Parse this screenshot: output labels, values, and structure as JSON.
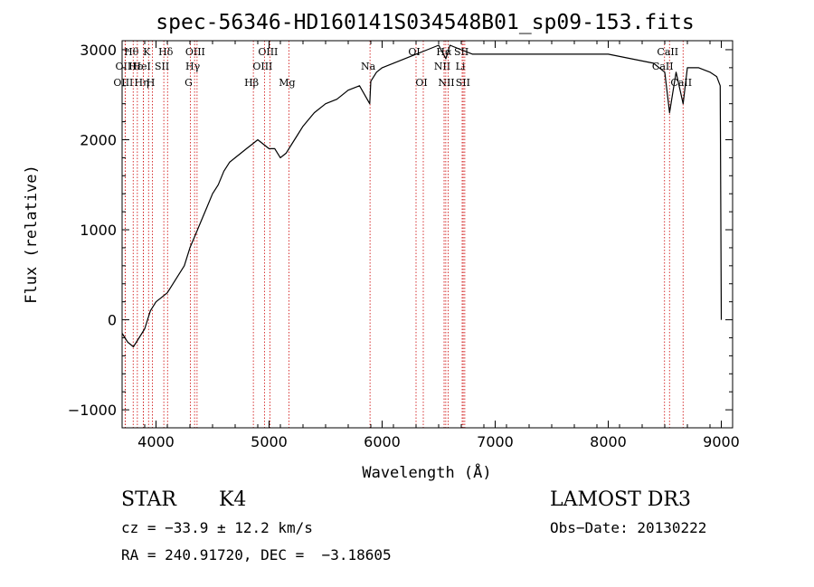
{
  "chart_data": {
    "type": "line",
    "title": "spec-56346-HD160141S034548B01_sp09-153.fits",
    "xlabel": "Wavelength (Å)",
    "ylabel": "Flux (relative)",
    "xlim": [
      3700,
      9100
    ],
    "ylim": [
      -1200,
      3100
    ],
    "xticks": [
      4000,
      5000,
      6000,
      7000,
      8000,
      9000
    ],
    "yticks": [
      -1000,
      0,
      1000,
      2000,
      3000
    ],
    "xtick_labels": [
      "4000",
      "5000",
      "6000",
      "7000",
      "8000",
      "9000"
    ],
    "ytick_labels": [
      "−1000",
      "0",
      "1000",
      "2000",
      "3000"
    ],
    "grid": false,
    "series": [
      {
        "color": "#000000",
        "x": [
          3700,
          3750,
          3800,
          3850,
          3900,
          3950,
          4000,
          4050,
          4100,
          4150,
          4200,
          4250,
          4300,
          4350,
          4400,
          4450,
          4500,
          4550,
          4600,
          4650,
          4700,
          4750,
          4800,
          4850,
          4900,
          4950,
          5000,
          5050,
          5100,
          5150,
          5200,
          5250,
          5300,
          5400,
          5500,
          5600,
          5700,
          5800,
          5890,
          5900,
          5950,
          6000,
          6100,
          6200,
          6300,
          6400,
          6500,
          6563,
          6600,
          6700,
          6800,
          6900,
          7000,
          7200,
          7400,
          7600,
          7800,
          8000,
          8200,
          8400,
          8500,
          8542,
          8600,
          8662,
          8700,
          8800,
          8900,
          8960,
          8990,
          9000
        ],
        "y": [
          -150,
          -250,
          -300,
          -200,
          -100,
          100,
          200,
          250,
          300,
          400,
          500,
          600,
          800,
          950,
          1100,
          1250,
          1400,
          1500,
          1650,
          1750,
          1800,
          1850,
          1900,
          1950,
          2000,
          1950,
          1900,
          1900,
          1800,
          1850,
          1950,
          2050,
          2150,
          2300,
          2400,
          2450,
          2550,
          2600,
          2400,
          2650,
          2750,
          2800,
          2850,
          2900,
          2950,
          3000,
          3050,
          2900,
          3050,
          3000,
          2950,
          2950,
          2950,
          2950,
          2950,
          2950,
          2950,
          2950,
          2900,
          2850,
          2750,
          2300,
          2750,
          2400,
          2800,
          2800,
          2750,
          2700,
          2600,
          0
        ]
      }
    ],
    "spectral_lines": [
      {
        "label": "Hθ",
        "x": 3798,
        "row": 1
      },
      {
        "label": "OII",
        "x": 3727,
        "row": 2
      },
      {
        "label": "OIII",
        "x": 3727,
        "row": 3
      },
      {
        "label": "Hε",
        "x": 3835,
        "row": 2
      },
      {
        "label": "Hη",
        "x": 3889,
        "row": 3
      },
      {
        "label": "K",
        "x": 3934,
        "row": 1
      },
      {
        "label": "HeI",
        "x": 3889,
        "row": 2
      },
      {
        "label": "H",
        "x": 3968,
        "row": 3
      },
      {
        "label": "Hδ",
        "x": 4102,
        "row": 1
      },
      {
        "label": "SII",
        "x": 4069,
        "row": 2
      },
      {
        "label": "OIII",
        "x": 4363,
        "row": 1
      },
      {
        "label": "Hγ",
        "x": 4341,
        "row": 2
      },
      {
        "label": "G",
        "x": 4304,
        "row": 3
      },
      {
        "label": "Hβ",
        "x": 4861,
        "row": 3
      },
      {
        "label": "OIII",
        "x": 5007,
        "row": 1
      },
      {
        "label": "OIII",
        "x": 4959,
        "row": 2
      },
      {
        "label": "Mg",
        "x": 5175,
        "row": 3
      },
      {
        "label": "Na",
        "x": 5893,
        "row": 2
      },
      {
        "label": "OI",
        "x": 6300,
        "row": 1
      },
      {
        "label": "OI",
        "x": 6364,
        "row": 3
      },
      {
        "label": "NII",
        "x": 6548,
        "row": 2
      },
      {
        "label": "NII",
        "x": 6584,
        "row": 3
      },
      {
        "label": "Hα",
        "x": 6563,
        "row": 1
      },
      {
        "label": "SII",
        "x": 6717,
        "row": 1
      },
      {
        "label": "Li",
        "x": 6708,
        "row": 2
      },
      {
        "label": "SII",
        "x": 6731,
        "row": 3
      },
      {
        "label": "CaII",
        "x": 8542,
        "row": 1
      },
      {
        "label": "CaII",
        "x": 8498,
        "row": 2
      },
      {
        "label": "CaII",
        "x": 8662,
        "row": 3
      }
    ],
    "line_color": "#cc0000"
  },
  "info": {
    "class": "STAR",
    "subclass": "K4",
    "survey": "LAMOST DR3",
    "cz": "cz = −33.9 ± 12.2 km/s",
    "obs_date": "Obs−Date: 20130222",
    "coords": "RA = 240.91720, DEC =  −3.18605"
  }
}
